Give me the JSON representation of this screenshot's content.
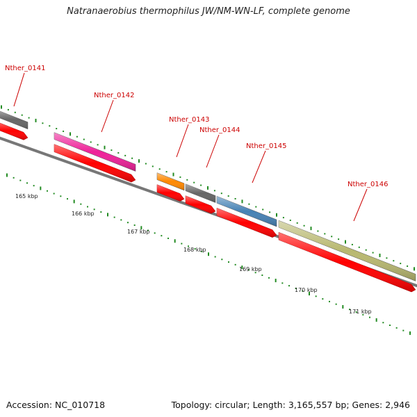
{
  "title": "Natranaerobius thermophilus JW/NM-WN-LF, complete genome",
  "footer": {
    "accession": "Accession: NC_010718",
    "stats": "Topology: circular; Length: 3,165,557 bp; Genes: 2,946"
  },
  "genes": [
    {
      "label": "Nther_0141",
      "color": "#666666",
      "name": "Nther_0141"
    },
    {
      "label": "Nther_0142",
      "color": "#ee2299",
      "name": "Nther_0142"
    },
    {
      "label": "Nther_0143",
      "color": "#ff8800",
      "name": "Nther_0143"
    },
    {
      "label": "Nther_0144",
      "color": "#666666",
      "name": "Nther_0144"
    },
    {
      "label": "Nther_0145",
      "color": "#4682b4",
      "name": "Nther_0145"
    },
    {
      "label": "Nther_0146",
      "color": "#b8b870",
      "name": "Nther_0146"
    }
  ],
  "scale_labels": [
    "165 kbp",
    "166 kbp",
    "167 kbp",
    "168 kbp",
    "169 kbp",
    "170 kbp",
    "171 kbp"
  ],
  "colors": {
    "cds": "#ff0000",
    "backbone": "#808080",
    "tick": "#228b22",
    "label": "#cc0000"
  }
}
